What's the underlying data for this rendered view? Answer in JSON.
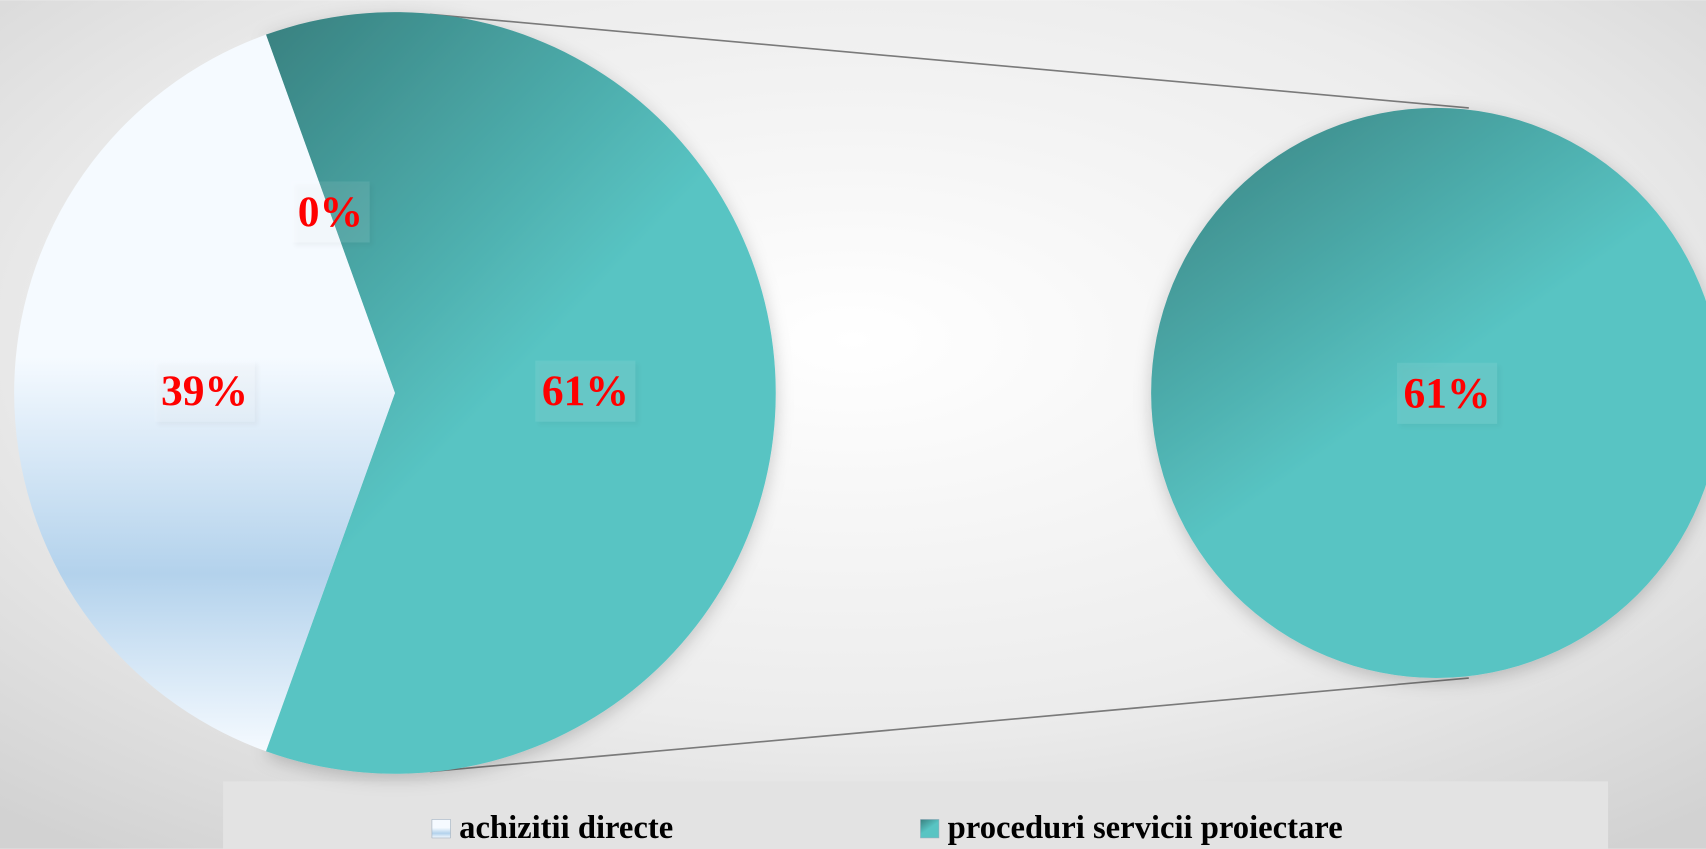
{
  "chart_data": {
    "type": "pie-of-pie",
    "categories": [
      "achizitii directe",
      null,
      "proceduri servicii proiectare"
    ],
    "values": [
      39,
      0,
      61
    ],
    "value_labels": [
      "39%",
      "0%",
      "61%"
    ],
    "second_plot_count": 1,
    "colors": [
      [
        "#f5faff",
        "#b3d2ec"
      ],
      [
        "#f5faff",
        "#b3d2ec"
      ],
      [
        "#38807f",
        "#58c4c3"
      ]
    ],
    "legend": "bottom"
  }
}
